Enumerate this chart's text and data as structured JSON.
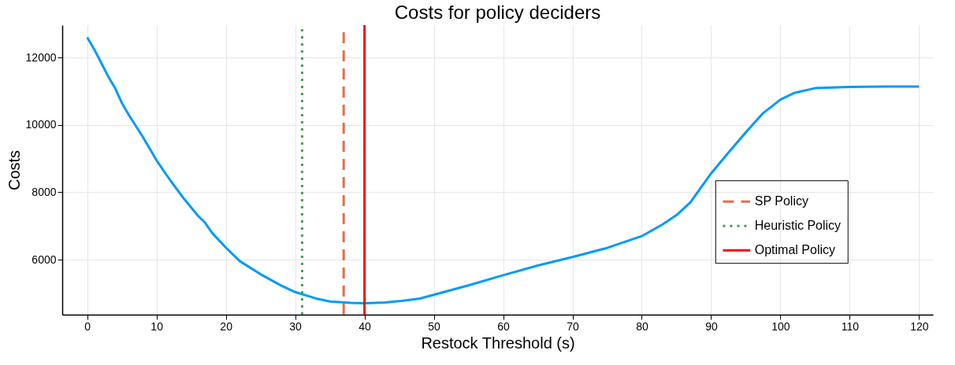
{
  "chart_data": {
    "type": "line",
    "title": "Costs for policy deciders",
    "xlabel": "Restock Threshold (s)",
    "ylabel": "Costs",
    "x": [
      0,
      1,
      2,
      3,
      4,
      5,
      6,
      8,
      10,
      12,
      14,
      16,
      17,
      18,
      20,
      22,
      25,
      28,
      30,
      33,
      35,
      38,
      40,
      43,
      45,
      48,
      50,
      55,
      60,
      65,
      70,
      75,
      80,
      83,
      85,
      87,
      90,
      92.5,
      95,
      97.5,
      100,
      102,
      105,
      110,
      115,
      120
    ],
    "series": [
      {
        "color": "#009af9",
        "line_style": "solid",
        "values": [
          12600,
          12250,
          11850,
          11450,
          11100,
          10650,
          10300,
          9650,
          8950,
          8350,
          7800,
          7300,
          7100,
          6800,
          6360,
          5960,
          5570,
          5230,
          5040,
          4850,
          4760,
          4720,
          4710,
          4730,
          4770,
          4850,
          4960,
          5240,
          5540,
          5830,
          6080,
          6350,
          6700,
          7050,
          7320,
          7700,
          8560,
          9180,
          9780,
          10350,
          10750,
          10950,
          11090,
          11130,
          11140,
          11140
        ]
      },
      {
        "name": "SP Policy",
        "color": "#e26f46",
        "line_style": "dashed",
        "x": [
          37,
          37
        ],
        "values": [
          4370,
          12960
        ]
      },
      {
        "name": "Heuristic Policy",
        "color": "#3da44d",
        "line_style": "dotted",
        "x": [
          31,
          31
        ],
        "values": [
          4370,
          12960
        ]
      },
      {
        "name": "Optimal Policy",
        "color": "#ff0000",
        "line_style": "solid",
        "x": [
          40,
          40
        ],
        "values": [
          4370,
          12960
        ]
      }
    ],
    "xlim": [
      -3.6,
      122
    ],
    "ylim": [
      4370,
      12960
    ],
    "xticks": [
      0,
      10,
      20,
      30,
      40,
      50,
      60,
      70,
      80,
      90,
      100,
      110,
      120
    ],
    "yticks": [
      6000,
      8000,
      10000,
      12000
    ],
    "grid": true,
    "legend": "right",
    "marker": "none"
  }
}
